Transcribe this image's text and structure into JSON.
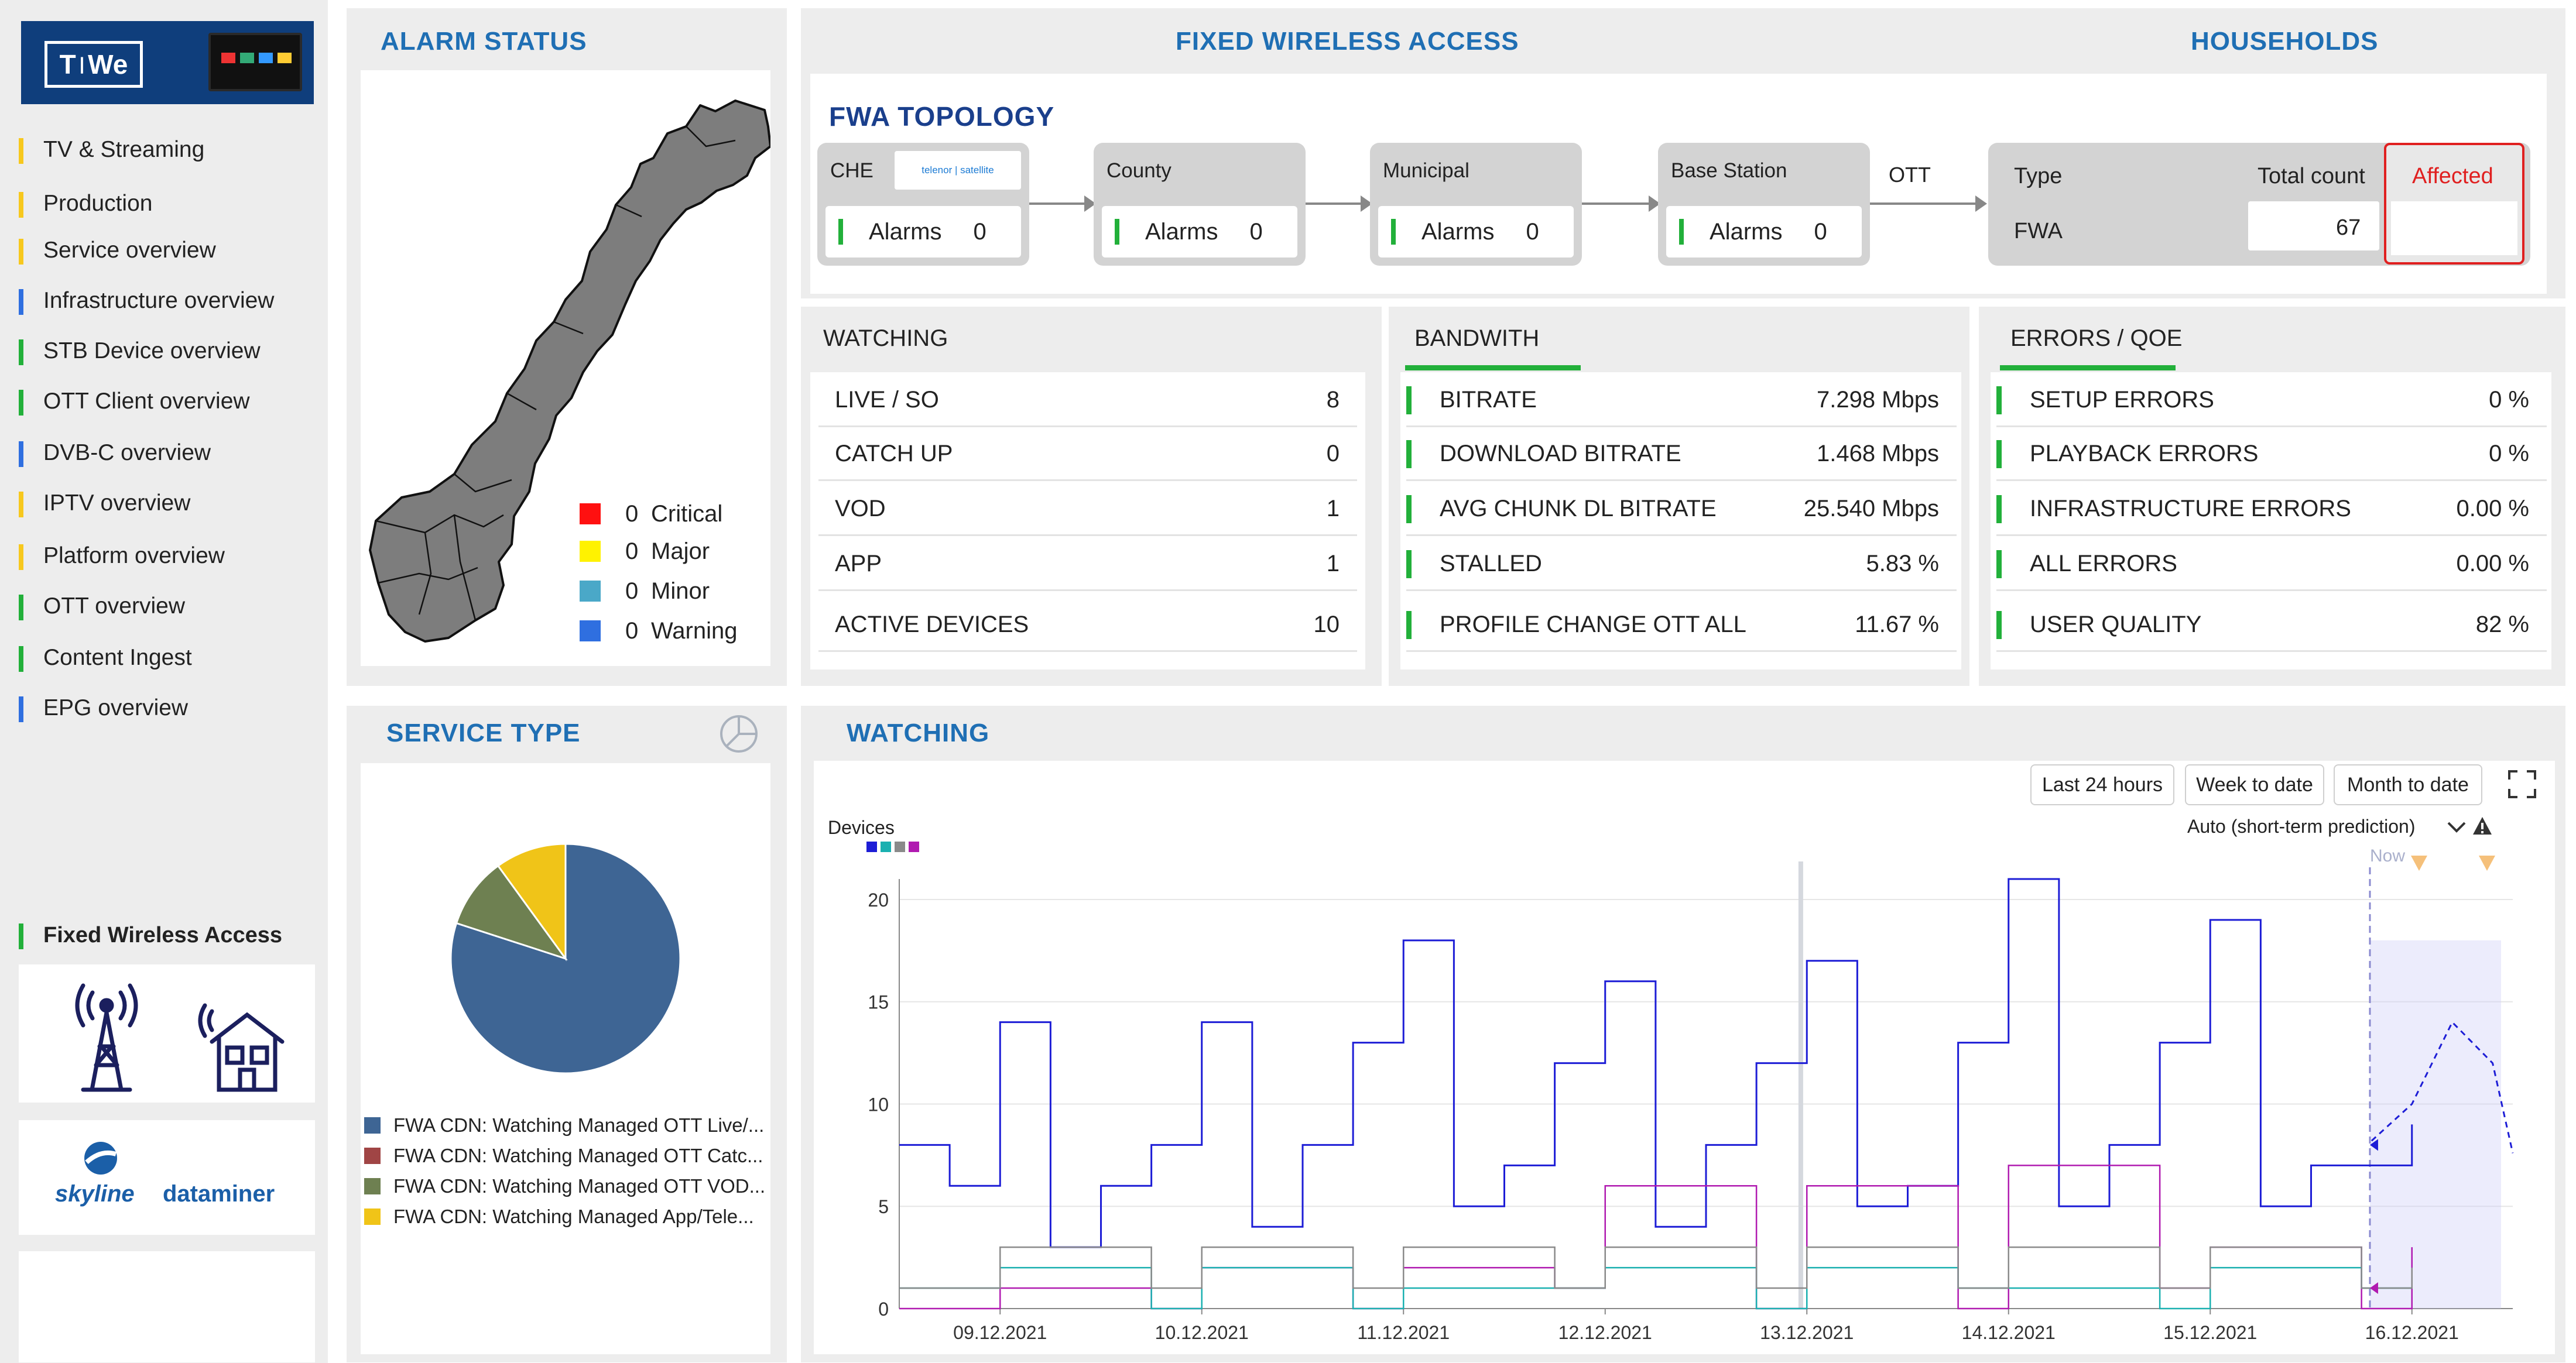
{
  "sidebar": {
    "logo_text": [
      "T",
      "We"
    ],
    "items": [
      {
        "label": "TV & Streaming",
        "color": "#f7c81e"
      },
      {
        "label": "Production",
        "color": "#f7c81e"
      },
      {
        "label": "Service overview",
        "color": "#f7c81e"
      },
      {
        "label": "Infrastructure overview",
        "color": "#2f6fe0"
      },
      {
        "label": "STB Device overview",
        "color": "#22b03a"
      },
      {
        "label": "OTT Client overview",
        "color": "#22b03a"
      },
      {
        "label": "DVB-C overview",
        "color": "#2f6fe0"
      },
      {
        "label": "IPTV overview",
        "color": "#f7c81e"
      },
      {
        "label": "Platform overview",
        "color": "#f7c81e"
      },
      {
        "label": "OTT overview",
        "color": "#22b03a"
      },
      {
        "label": "Content Ingest",
        "color": "#22b03a"
      },
      {
        "label": "EPG overview",
        "color": "#2f6fe0"
      }
    ],
    "section_label": "Fixed Wireless Access",
    "section_color": "#22b03a",
    "icons": [
      "cell-tower-icon",
      "wireless-house-icon"
    ],
    "brand": {
      "left": "skyline",
      "right": "dataminer"
    }
  },
  "alarm_status": {
    "title": "ALARM STATUS",
    "legend": [
      {
        "count": "0",
        "label": "Critical",
        "color": "#ff1010"
      },
      {
        "count": "0",
        "label": "Major",
        "color": "#fff200"
      },
      {
        "count": "0",
        "label": "Minor",
        "color": "#4aa8c8"
      },
      {
        "count": "0",
        "label": "Warning",
        "color": "#2f6fe0"
      }
    ]
  },
  "fwa": {
    "title": "FIXED WIRELESS ACCESS",
    "topology_title": "FWA TOPOLOGY",
    "che_logo": "telenor | satellite",
    "nodes": [
      {
        "label": "CHE",
        "alarms_label": "Alarms",
        "alarms": "0"
      },
      {
        "label": "County",
        "alarms_label": "Alarms",
        "alarms": "0"
      },
      {
        "label": "Municipal",
        "alarms_label": "Alarms",
        "alarms": "0"
      },
      {
        "label": "Base Station",
        "alarms_label": "Alarms",
        "alarms": "0"
      }
    ],
    "ott_label": "OTT"
  },
  "households": {
    "title": "HOUSEHOLDS",
    "type_label": "Type",
    "total_label": "Total count",
    "affected_label": "Affected",
    "type_value": "FWA",
    "total_value": "67",
    "affected_value": ""
  },
  "watching_kpis": {
    "title": "WATCHING",
    "rows": [
      {
        "label": "LIVE / SO",
        "value": "8"
      },
      {
        "label": "CATCH UP",
        "value": "0"
      },
      {
        "label": "VOD",
        "value": "1"
      },
      {
        "label": "APP",
        "value": "1"
      },
      {
        "label": "ACTIVE DEVICES",
        "value": "10"
      }
    ]
  },
  "bandwidth": {
    "title": "BANDWITH",
    "rows": [
      {
        "label": "BITRATE",
        "value": "7.298 Mbps"
      },
      {
        "label": "DOWNLOAD BITRATE",
        "value": "1.468 Mbps"
      },
      {
        "label": "AVG CHUNK DL BITRATE",
        "value": "25.540 Mbps"
      },
      {
        "label": "STALLED",
        "value": "5.83 %"
      },
      {
        "label": "PROFILE CHANGE OTT ALL",
        "value": "11.67 %"
      }
    ]
  },
  "errors": {
    "title": "ERRORS / QOE",
    "rows": [
      {
        "label": "SETUP ERRORS",
        "value": "0 %"
      },
      {
        "label": "PLAYBACK ERRORS",
        "value": "0 %"
      },
      {
        "label": "INFRASTRUCTURE ERRORS",
        "value": "0.00 %"
      },
      {
        "label": "ALL ERRORS",
        "value": "0.00 %"
      },
      {
        "label": "USER QUALITY",
        "value": "82 %"
      }
    ]
  },
  "service_type": {
    "title": "SERVICE TYPE",
    "legend": [
      {
        "label": "FWA CDN: Watching Managed OTT Live/...",
        "color": "#3e6594"
      },
      {
        "label": "FWA CDN: Watching Managed OTT Catc...",
        "color": "#a04545"
      },
      {
        "label": "FWA CDN: Watching Managed OTT VOD...",
        "color": "#6e8051"
      },
      {
        "label": "FWA CDN: Watching Managed App/Tele...",
        "color": "#f0c418"
      }
    ]
  },
  "watching_chart": {
    "title": "WATCHING",
    "buttons": [
      "Last 24 hours",
      "Week to date",
      "Month to date"
    ],
    "prediction_label": "Auto (short-term prediction)",
    "now_label": "Now",
    "y_label": "Devices"
  },
  "chart_data": [
    {
      "type": "pie",
      "title": "SERVICE TYPE",
      "categories": [
        "FWA CDN: Watching Managed OTT Live/...",
        "FWA CDN: Watching Managed OTT Catc...",
        "FWA CDN: Watching Managed OTT VOD...",
        "FWA CDN: Watching Managed App/Tele..."
      ],
      "values": [
        80,
        0,
        10,
        10
      ],
      "colors": [
        "#3e6594",
        "#a04545",
        "#6e8051",
        "#f0c418"
      ]
    },
    {
      "type": "line",
      "title": "WATCHING",
      "ylabel": "Devices",
      "ylim": [
        0,
        21
      ],
      "yticks": [
        0,
        5,
        10,
        15,
        20
      ],
      "xticks": [
        "09.12.2021",
        "10.12.2021",
        "11.12.2021",
        "12.12.2021",
        "13.12.2021",
        "14.12.2021",
        "15.12.2021",
        "16.12.2021"
      ],
      "xlim": [
        "2021-12-08T12:00",
        "2021-12-16T12:00"
      ],
      "series": [
        {
          "color": "#1d1dd6",
          "x": [
            "2021-12-08T12:00",
            "2021-12-08T18:00",
            "2021-12-09T00:00",
            "2021-12-09T06:00",
            "2021-12-09T12:00",
            "2021-12-09T18:00",
            "2021-12-10T00:00",
            "2021-12-10T06:00",
            "2021-12-10T12:00",
            "2021-12-10T18:00",
            "2021-12-11T00:00",
            "2021-12-11T06:00",
            "2021-12-11T12:00",
            "2021-12-11T18:00",
            "2021-12-12T00:00",
            "2021-12-12T06:00",
            "2021-12-12T12:00",
            "2021-12-12T18:00",
            "2021-12-13T00:00",
            "2021-12-13T06:00",
            "2021-12-13T12:00",
            "2021-12-13T18:00",
            "2021-12-14T00:00",
            "2021-12-14T06:00",
            "2021-12-14T12:00",
            "2021-12-14T18:00",
            "2021-12-15T00:00",
            "2021-12-15T06:00",
            "2021-12-15T12:00",
            "2021-12-15T18:00",
            "2021-12-16T00:00"
          ],
          "y": [
            8,
            6,
            14,
            3,
            6,
            8,
            14,
            4,
            8,
            13,
            18,
            5,
            7,
            12,
            16,
            4,
            8,
            12,
            17,
            5,
            6,
            13,
            21,
            5,
            8,
            13,
            19,
            5,
            7,
            7,
            9
          ]
        },
        {
          "color": "#b01ab0",
          "x": [
            "2021-12-08T12:00",
            "2021-12-09T00:00",
            "2021-12-09T18:00",
            "2021-12-10T00:00",
            "2021-12-10T18:00",
            "2021-12-11T00:00",
            "2021-12-11T18:00",
            "2021-12-12T00:00",
            "2021-12-12T18:00",
            "2021-12-13T00:00",
            "2021-12-13T18:00",
            "2021-12-14T00:00",
            "2021-12-14T18:00",
            "2021-12-15T00:00",
            "2021-12-15T18:00",
            "2021-12-16T00:00"
          ],
          "y": [
            0,
            1,
            0,
            2,
            0,
            2,
            1,
            6,
            0,
            6,
            0,
            7,
            1,
            3,
            0,
            3
          ]
        },
        {
          "color": "#1ab0b0",
          "x": [
            "2021-12-08T12:00",
            "2021-12-09T00:00",
            "2021-12-09T18:00",
            "2021-12-10T00:00",
            "2021-12-10T18:00",
            "2021-12-11T00:00",
            "2021-12-11T18:00",
            "2021-12-12T00:00",
            "2021-12-12T18:00",
            "2021-12-13T00:00",
            "2021-12-13T18:00",
            "2021-12-14T00:00",
            "2021-12-14T18:00",
            "2021-12-15T00:00",
            "2021-12-15T18:00",
            "2021-12-16T00:00"
          ],
          "y": [
            1,
            2,
            0,
            2,
            0,
            1,
            1,
            2,
            0,
            2,
            1,
            1,
            0,
            2,
            1,
            2
          ]
        },
        {
          "color": "#8a8a8a",
          "x": [
            "2021-12-08T12:00",
            "2021-12-09T00:00",
            "2021-12-09T18:00",
            "2021-12-10T00:00",
            "2021-12-10T18:00",
            "2021-12-11T00:00",
            "2021-12-11T18:00",
            "2021-12-12T00:00",
            "2021-12-12T18:00",
            "2021-12-13T00:00",
            "2021-12-13T18:00",
            "2021-12-14T00:00",
            "2021-12-14T18:00",
            "2021-12-15T00:00",
            "2021-12-15T18:00",
            "2021-12-16T00:00"
          ],
          "y": [
            1,
            3,
            1,
            3,
            1,
            3,
            1,
            3,
            1,
            3,
            1,
            3,
            1,
            3,
            1,
            2
          ]
        }
      ]
    }
  ]
}
